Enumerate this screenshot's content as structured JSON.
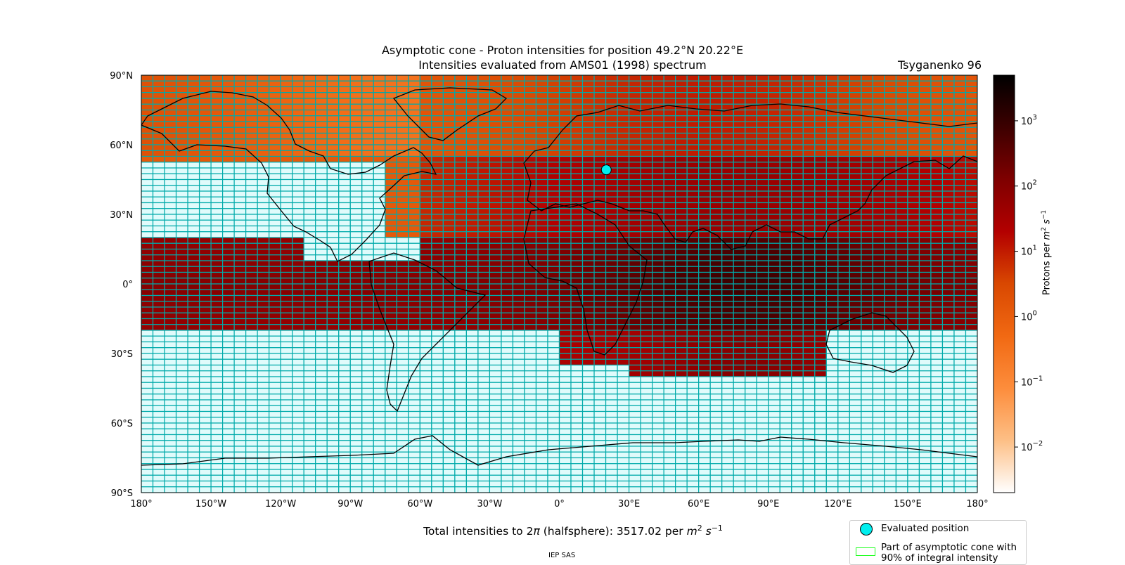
{
  "title_line1": "Asymptotic cone - Proton intensities for position 49.2°N 20.22°E",
  "title_line2": "Intensities evaluated from AMS01 (1998) spectrum",
  "model_label": "Tsyganenko 96",
  "total": {
    "prefix": "Total intensities to 2",
    "pi": "π",
    "middle": " (halfsphere): 3517.02 per ",
    "unit_m": "m",
    "unit_m_exp": "2",
    "unit_s": "s",
    "unit_s_exp": "−1"
  },
  "credit": "IEP SAS",
  "legend": {
    "evaluated_position": "Evaluated position",
    "cone_line1": "Part of asymptotic cone with",
    "cone_line2": "90% of integral intensity"
  },
  "colorbar": {
    "label_prefix": "Protons per ",
    "label_m": "m",
    "label_m_exp": "2",
    "label_s": "s",
    "label_s_exp": "−1",
    "scale": "log",
    "ticks": [
      {
        "base": "10",
        "exp": "3",
        "value": 1000
      },
      {
        "base": "10",
        "exp": "2",
        "value": 100
      },
      {
        "base": "10",
        "exp": "1",
        "value": 10
      },
      {
        "base": "10",
        "exp": "0",
        "value": 1
      },
      {
        "base": "10",
        "exp": "−1",
        "value": 0.1
      },
      {
        "base": "10",
        "exp": "−2",
        "value": 0.01
      }
    ],
    "range": [
      0.002,
      5000
    ],
    "colors": [
      "#ffffff",
      "#fdbf86",
      "#fd8d3c",
      "#f16913",
      "#d94801",
      "#b30000",
      "#7f0000",
      "#3d0000",
      "#000000"
    ]
  },
  "map": {
    "x_ticks": [
      "180°",
      "150°W",
      "120°W",
      "90°W",
      "60°W",
      "30°W",
      "0°",
      "30°E",
      "60°E",
      "90°E",
      "120°E",
      "150°E",
      "180°"
    ],
    "y_ticks": [
      "90°N",
      "60°N",
      "30°N",
      "0°",
      "30°S",
      "60°S",
      "90°S"
    ],
    "grid_line_color": "#00aaaa",
    "empty_cell_color": "#e0fbfb",
    "marker_color": "#00eeee",
    "cone_color": "#22ff22"
  },
  "chart_data": {
    "type": "heatmap",
    "title": "Asymptotic cone - Proton intensities for position 49.2°N 20.22°E",
    "subtitle": "Intensities evaluated from AMS01 (1998) spectrum",
    "xlim": [
      -180,
      180
    ],
    "ylim": [
      -90,
      90
    ],
    "cell_size_deg": {
      "lon": 5,
      "lat": 2.5
    },
    "evaluated_position": {
      "lat": 49.2,
      "lon": 20.22
    },
    "total_intensity": 3517.02,
    "coverage": "cones filled from 90°N to ~20°S; lower latitudes band 20°N–20°S most intense (10^2–10^3); polar caps ~10^-1–10^1; southern hemisphere below ~40°S empty",
    "regions": [
      {
        "lat_range": [
          55,
          90
        ],
        "lon_range": [
          -180,
          180
        ],
        "log10_intensity": 0.2
      },
      {
        "lat_range": [
          20,
          55
        ],
        "lon_range": [
          -60,
          180
        ],
        "log10_intensity": 1.5
      },
      {
        "lat_range": [
          -20,
          20
        ],
        "lon_range": [
          -180,
          180
        ],
        "log10_intensity": 2.3
      },
      {
        "lat_range": [
          -40,
          -20
        ],
        "lon_range": [
          0,
          115
        ],
        "log10_intensity": 1.7
      }
    ]
  }
}
